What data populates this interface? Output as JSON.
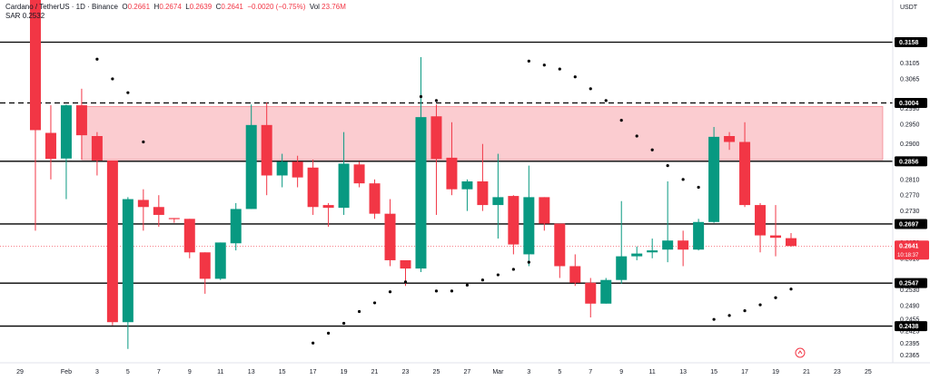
{
  "header": {
    "symbol": "Cardano / TetherUS · 1D · Binance",
    "o_label": "O",
    "o_value": "0.2661",
    "h_label": "H",
    "h_value": "0.2674",
    "l_label": "L",
    "l_value": "0.2639",
    "c_label": "C",
    "c_value": "0.2641",
    "change": "−0.0020 (−0.75%)",
    "vol_label": "Vol",
    "vol_value": "23.76M",
    "sar_label": "SAR",
    "sar_value": "0.2532",
    "currency": "USDT"
  },
  "chart_data": {
    "type": "candlestick",
    "colors": {
      "up": "#089981",
      "down": "#f23645",
      "zone": "#f7a3aa",
      "line": "#000000",
      "sar": "#000000"
    },
    "yaxis": {
      "range": [
        0.2345,
        0.3265
      ],
      "ticks": [
        "0.3105",
        "0.3065",
        "0.2990",
        "0.2950",
        "0.2900",
        "0.2810",
        "0.2770",
        "0.2730",
        "0.2690",
        "0.2650",
        "0.2610",
        "0.2530",
        "0.2490",
        "0.2455",
        "0.2425",
        "0.2395",
        "0.2365"
      ]
    },
    "xaxis": {
      "ticks": [
        {
          "i": 0,
          "label": "29"
        },
        {
          "i": 3,
          "label": "Feb"
        },
        {
          "i": 5,
          "label": "3"
        },
        {
          "i": 7,
          "label": "5"
        },
        {
          "i": 9,
          "label": "7"
        },
        {
          "i": 11,
          "label": "9"
        },
        {
          "i": 13,
          "label": "11"
        },
        {
          "i": 15,
          "label": "13"
        },
        {
          "i": 17,
          "label": "15"
        },
        {
          "i": 19,
          "label": "17"
        },
        {
          "i": 21,
          "label": "19"
        },
        {
          "i": 23,
          "label": "21"
        },
        {
          "i": 25,
          "label": "23"
        },
        {
          "i": 27,
          "label": "25"
        },
        {
          "i": 29,
          "label": "27"
        },
        {
          "i": 31,
          "label": "Mar"
        },
        {
          "i": 33,
          "label": "3"
        },
        {
          "i": 35,
          "label": "5"
        },
        {
          "i": 37,
          "label": "7"
        },
        {
          "i": 39,
          "label": "9"
        },
        {
          "i": 41,
          "label": "11"
        },
        {
          "i": 43,
          "label": "13"
        },
        {
          "i": 45,
          "label": "15"
        },
        {
          "i": 47,
          "label": "17"
        },
        {
          "i": 49,
          "label": "19"
        },
        {
          "i": 51,
          "label": "21"
        },
        {
          "i": 53,
          "label": "23"
        },
        {
          "i": 55,
          "label": "25"
        }
      ]
    },
    "levels": [
      {
        "value": 0.3158,
        "label": "0.3158",
        "style": "solid"
      },
      {
        "value": 0.3004,
        "label": "0.3004",
        "style": "dashed"
      },
      {
        "value": 0.2856,
        "label": "0.2856",
        "style": "solid"
      },
      {
        "value": 0.2697,
        "label": "0.2697",
        "style": "solid"
      },
      {
        "value": 0.2547,
        "label": "0.2547",
        "style": "solid"
      },
      {
        "value": 0.2438,
        "label": "0.2438",
        "style": "solid"
      }
    ],
    "zone": {
      "from": 0.286,
      "to": 0.2995
    },
    "last_price": {
      "value": 0.2641,
      "label": "0.2641",
      "countdown": "10:18:37"
    },
    "candles": [
      {
        "i": 1,
        "o": 0.3265,
        "h": 0.3265,
        "l": 0.268,
        "c": 0.2935
      },
      {
        "i": 2,
        "o": 0.2928,
        "h": 0.2998,
        "l": 0.281,
        "c": 0.2862
      },
      {
        "i": 3,
        "o": 0.2863,
        "h": 0.3,
        "l": 0.276,
        "c": 0.2998
      },
      {
        "i": 4,
        "o": 0.2998,
        "h": 0.304,
        "l": 0.286,
        "c": 0.2922
      },
      {
        "i": 5,
        "o": 0.292,
        "h": 0.293,
        "l": 0.282,
        "c": 0.2858
      },
      {
        "i": 6,
        "o": 0.2858,
        "h": 0.2858,
        "l": 0.244,
        "c": 0.2448
      },
      {
        "i": 7,
        "o": 0.2448,
        "h": 0.2765,
        "l": 0.238,
        "c": 0.276
      },
      {
        "i": 8,
        "o": 0.2758,
        "h": 0.2785,
        "l": 0.268,
        "c": 0.274
      },
      {
        "i": 9,
        "o": 0.274,
        "h": 0.277,
        "l": 0.269,
        "c": 0.272
      },
      {
        "i": 10,
        "o": 0.2712,
        "h": 0.2712,
        "l": 0.27,
        "c": 0.271
      },
      {
        "i": 11,
        "o": 0.271,
        "h": 0.271,
        "l": 0.261,
        "c": 0.2625
      },
      {
        "i": 12,
        "o": 0.2625,
        "h": 0.2625,
        "l": 0.252,
        "c": 0.2558
      },
      {
        "i": 13,
        "o": 0.2558,
        "h": 0.265,
        "l": 0.2555,
        "c": 0.265
      },
      {
        "i": 14,
        "o": 0.2648,
        "h": 0.275,
        "l": 0.263,
        "c": 0.2735
      },
      {
        "i": 15,
        "o": 0.2735,
        "h": 0.3,
        "l": 0.2735,
        "c": 0.2948
      },
      {
        "i": 16,
        "o": 0.2948,
        "h": 0.3005,
        "l": 0.277,
        "c": 0.282
      },
      {
        "i": 17,
        "o": 0.282,
        "h": 0.2875,
        "l": 0.279,
        "c": 0.2855
      },
      {
        "i": 18,
        "o": 0.2855,
        "h": 0.287,
        "l": 0.279,
        "c": 0.2815
      },
      {
        "i": 19,
        "o": 0.284,
        "h": 0.286,
        "l": 0.272,
        "c": 0.274
      },
      {
        "i": 20,
        "o": 0.2745,
        "h": 0.275,
        "l": 0.269,
        "c": 0.2738
      },
      {
        "i": 21,
        "o": 0.2738,
        "h": 0.293,
        "l": 0.272,
        "c": 0.285
      },
      {
        "i": 22,
        "o": 0.2848,
        "h": 0.2855,
        "l": 0.279,
        "c": 0.28
      },
      {
        "i": 23,
        "o": 0.28,
        "h": 0.281,
        "l": 0.271,
        "c": 0.2723
      },
      {
        "i": 24,
        "o": 0.2723,
        "h": 0.276,
        "l": 0.259,
        "c": 0.2605
      },
      {
        "i": 25,
        "o": 0.2605,
        "h": 0.2605,
        "l": 0.254,
        "c": 0.2584
      },
      {
        "i": 26,
        "o": 0.2584,
        "h": 0.312,
        "l": 0.2575,
        "c": 0.2968
      },
      {
        "i": 27,
        "o": 0.297,
        "h": 0.3,
        "l": 0.272,
        "c": 0.2862
      },
      {
        "i": 28,
        "o": 0.2865,
        "h": 0.2955,
        "l": 0.277,
        "c": 0.2785
      },
      {
        "i": 29,
        "o": 0.2785,
        "h": 0.281,
        "l": 0.273,
        "c": 0.2805
      },
      {
        "i": 30,
        "o": 0.2805,
        "h": 0.29,
        "l": 0.273,
        "c": 0.2745
      },
      {
        "i": 31,
        "o": 0.2745,
        "h": 0.2875,
        "l": 0.266,
        "c": 0.2765
      },
      {
        "i": 32,
        "o": 0.2768,
        "h": 0.277,
        "l": 0.262,
        "c": 0.2645
      },
      {
        "i": 33,
        "o": 0.262,
        "h": 0.2845,
        "l": 0.259,
        "c": 0.2765
      },
      {
        "i": 34,
        "o": 0.2765,
        "h": 0.2765,
        "l": 0.268,
        "c": 0.2698
      },
      {
        "i": 35,
        "o": 0.2698,
        "h": 0.2698,
        "l": 0.256,
        "c": 0.259
      },
      {
        "i": 36,
        "o": 0.259,
        "h": 0.262,
        "l": 0.254,
        "c": 0.2548
      },
      {
        "i": 37,
        "o": 0.2548,
        "h": 0.256,
        "l": 0.246,
        "c": 0.2495
      },
      {
        "i": 38,
        "o": 0.2495,
        "h": 0.256,
        "l": 0.2495,
        "c": 0.2555
      },
      {
        "i": 39,
        "o": 0.2555,
        "h": 0.2755,
        "l": 0.2545,
        "c": 0.2615
      },
      {
        "i": 40,
        "o": 0.2615,
        "h": 0.264,
        "l": 0.2605,
        "c": 0.2622
      },
      {
        "i": 41,
        "o": 0.2625,
        "h": 0.266,
        "l": 0.261,
        "c": 0.263
      },
      {
        "i": 42,
        "o": 0.2632,
        "h": 0.2805,
        "l": 0.26,
        "c": 0.2655
      },
      {
        "i": 43,
        "o": 0.2655,
        "h": 0.268,
        "l": 0.259,
        "c": 0.2632
      },
      {
        "i": 44,
        "o": 0.2632,
        "h": 0.271,
        "l": 0.263,
        "c": 0.2702
      },
      {
        "i": 45,
        "o": 0.2702,
        "h": 0.2943,
        "l": 0.27,
        "c": 0.2918
      },
      {
        "i": 46,
        "o": 0.292,
        "h": 0.293,
        "l": 0.2885,
        "c": 0.2905
      },
      {
        "i": 47,
        "o": 0.2905,
        "h": 0.2955,
        "l": 0.274,
        "c": 0.2745
      },
      {
        "i": 48,
        "o": 0.2745,
        "h": 0.275,
        "l": 0.2625,
        "c": 0.2668
      },
      {
        "i": 49,
        "o": 0.2668,
        "h": 0.2745,
        "l": 0.2615,
        "c": 0.2662
      },
      {
        "i": 50,
        "o": 0.2661,
        "h": 0.2674,
        "l": 0.2639,
        "c": 0.2641
      }
    ],
    "sar": [
      {
        "i": 5,
        "v": 0.3115
      },
      {
        "i": 6,
        "v": 0.3065
      },
      {
        "i": 7,
        "v": 0.303
      },
      {
        "i": 8,
        "v": 0.2905
      },
      {
        "i": 19,
        "v": 0.2395
      },
      {
        "i": 20,
        "v": 0.242
      },
      {
        "i": 21,
        "v": 0.2445
      },
      {
        "i": 22,
        "v": 0.2475
      },
      {
        "i": 23,
        "v": 0.2497
      },
      {
        "i": 24,
        "v": 0.2525
      },
      {
        "i": 25,
        "v": 0.255
      },
      {
        "i": 26,
        "v": 0.302
      },
      {
        "i": 27,
        "v": 0.301
      },
      {
        "i": 27,
        "v": 0.2527
      },
      {
        "i": 28,
        "v": 0.2527
      },
      {
        "i": 29,
        "v": 0.2542
      },
      {
        "i": 30,
        "v": 0.2555
      },
      {
        "i": 31,
        "v": 0.2568
      },
      {
        "i": 32,
        "v": 0.2582
      },
      {
        "i": 33,
        "v": 0.26
      },
      {
        "i": 33,
        "v": 0.311
      },
      {
        "i": 34,
        "v": 0.31
      },
      {
        "i": 35,
        "v": 0.309
      },
      {
        "i": 36,
        "v": 0.307
      },
      {
        "i": 37,
        "v": 0.304
      },
      {
        "i": 38,
        "v": 0.301
      },
      {
        "i": 39,
        "v": 0.296
      },
      {
        "i": 40,
        "v": 0.292
      },
      {
        "i": 41,
        "v": 0.2885
      },
      {
        "i": 42,
        "v": 0.2845
      },
      {
        "i": 43,
        "v": 0.281
      },
      {
        "i": 44,
        "v": 0.279
      },
      {
        "i": 45,
        "v": 0.2455
      },
      {
        "i": 46,
        "v": 0.2465
      },
      {
        "i": 47,
        "v": 0.2477
      },
      {
        "i": 48,
        "v": 0.2492
      },
      {
        "i": 49,
        "v": 0.251
      },
      {
        "i": 50,
        "v": 0.2532
      }
    ]
  }
}
